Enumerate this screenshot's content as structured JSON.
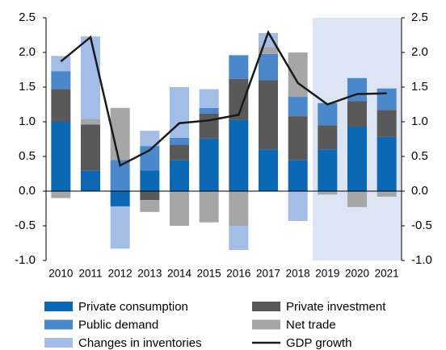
{
  "chart_data": {
    "type": "bar",
    "stacked": true,
    "categories": [
      "2010",
      "2011",
      "2012",
      "2013",
      "2014",
      "2015",
      "2016",
      "2017",
      "2018",
      "2019",
      "2020",
      "2021"
    ],
    "series": [
      {
        "name": "Private consumption",
        "color": "#0a68b4",
        "values": [
          1.0,
          0.3,
          -0.22,
          0.3,
          0.45,
          0.76,
          1.03,
          0.6,
          0.45,
          0.6,
          0.93,
          0.78
        ]
      },
      {
        "name": "Private investment",
        "color": "#595959",
        "values": [
          0.47,
          0.66,
          0,
          -0.13,
          0.22,
          0.36,
          0.59,
          1.0,
          0.63,
          0.35,
          0.37,
          0.39
        ]
      },
      {
        "name": "Public demand",
        "color": "#4a88cc",
        "values": [
          0.26,
          0,
          0.45,
          0.35,
          0.1,
          0.08,
          0.34,
          0.38,
          0.28,
          0.32,
          0.33,
          0.31
        ]
      },
      {
        "name": "Net trade",
        "color": "#a6a6a6",
        "values": [
          -0.1,
          0.08,
          0.75,
          -0.17,
          -0.5,
          -0.45,
          -0.5,
          0.1,
          0.64,
          -0.05,
          -0.23,
          -0.08
        ]
      },
      {
        "name": "Changes in inventories",
        "color": "#a2bde6",
        "values": [
          0.22,
          1.19,
          -0.61,
          0.22,
          0.73,
          0.27,
          -0.35,
          0.2,
          -0.43,
          0,
          0,
          0
        ]
      },
      {
        "name": "GDP growth",
        "type": "line",
        "color": "#1a1a1a",
        "values": [
          1.87,
          2.22,
          0.37,
          0.59,
          0.98,
          1.02,
          1.1,
          2.29,
          1.56,
          1.25,
          1.4,
          1.41
        ]
      }
    ],
    "shaded_from": "2019",
    "shade_color": "#dde5f4",
    "ylim": [
      -1.0,
      2.5
    ],
    "yticks": [
      {
        "value": -1,
        "label": "-1.0"
      },
      {
        "value": -0.5,
        "label": "-0.5"
      },
      {
        "value": 0,
        "label": "0.0"
      },
      {
        "value": 0.5,
        "label": "0.5"
      },
      {
        "value": 1,
        "label": "1.0"
      },
      {
        "value": 1.5,
        "label": "1.5"
      },
      {
        "value": 2,
        "label": "2.0"
      },
      {
        "value": 2.5,
        "label": "2.5"
      }
    ],
    "y2lim": [
      -1.0,
      2.5
    ],
    "y2ticks": [
      {
        "value": -1,
        "label": "-1.0"
      },
      {
        "value": -0.5,
        "label": "-0.5"
      },
      {
        "value": 0,
        "label": "0.0"
      },
      {
        "value": 0.5,
        "label": "0.5"
      },
      {
        "value": 1,
        "label": "1.0"
      },
      {
        "value": 1.5,
        "label": "1.5"
      },
      {
        "value": 2,
        "label": "2.0"
      },
      {
        "value": 2.5,
        "label": "2.5"
      }
    ],
    "legend": "bottom"
  }
}
